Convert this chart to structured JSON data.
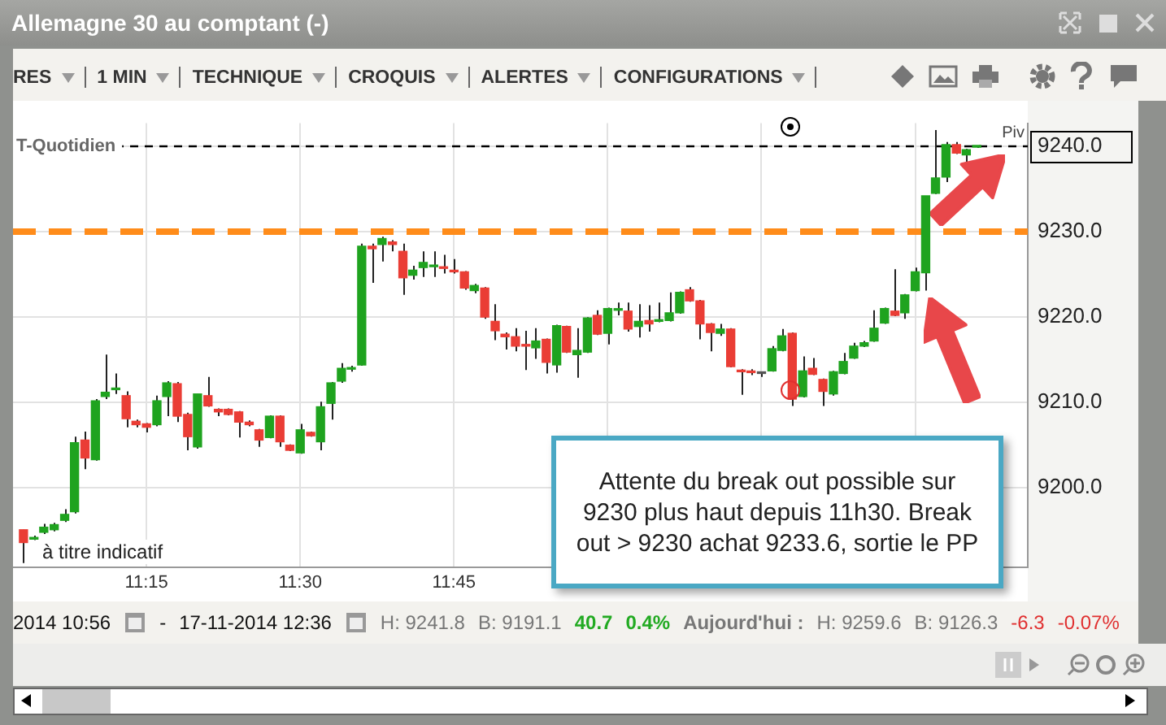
{
  "chart_data": {
    "type": "candlestick",
    "title": "Allemagne 30 au comptant (-)",
    "x": [
      11.05,
      11.067,
      11.083,
      11.1,
      11.117,
      11.133,
      11.15,
      11.167,
      11.183,
      11.2,
      11.217,
      11.233,
      11.25,
      11.267,
      11.283,
      11.3,
      11.317,
      11.333,
      11.35,
      11.367,
      11.383,
      11.4,
      11.417,
      11.433,
      11.45,
      11.467,
      11.483,
      11.5,
      11.517,
      11.533,
      11.55,
      11.567,
      11.583,
      11.6,
      11.617,
      11.633,
      11.65,
      11.667,
      11.683,
      11.7,
      11.717,
      11.733,
      11.75,
      11.767,
      11.783,
      11.8,
      11.817,
      11.833,
      11.85,
      11.867,
      11.883,
      11.9,
      11.917,
      11.933,
      11.95,
      11.967,
      11.983,
      12.0,
      12.017,
      12.033,
      12.05,
      12.067,
      12.083,
      12.1,
      12.117,
      12.133,
      12.15,
      12.167,
      12.183,
      12.2,
      12.217,
      12.233,
      12.25,
      12.267,
      12.283,
      12.3,
      12.317,
      12.333,
      12.35,
      12.367,
      12.383,
      12.4,
      12.417,
      12.433,
      12.45,
      12.467,
      12.483,
      12.5,
      12.517,
      12.533,
      12.55,
      12.567,
      12.583,
      12.6
    ],
    "ohlc": [
      [
        9195.1,
        9195.1,
        9191.2,
        9193.6
      ],
      [
        9194.0,
        9194.4,
        9193.9,
        9194.2
      ],
      [
        9194.8,
        9195.8,
        9194.6,
        9195.4
      ],
      [
        9195.1,
        9195.9,
        9194.9,
        9195.7
      ],
      [
        9196.2,
        9197.5,
        9196.0,
        9196.9
      ],
      [
        9197.2,
        9206.0,
        9197.0,
        9205.3
      ],
      [
        9205.6,
        9206.6,
        9202.2,
        9203.5
      ],
      [
        9203.3,
        9210.4,
        9203.2,
        9210.2
      ],
      [
        9210.7,
        9215.6,
        9210.4,
        9211.2
      ],
      [
        9211.5,
        9213.4,
        9211.0,
        9211.6
      ],
      [
        9210.8,
        9211.3,
        9207.1,
        9208.1
      ],
      [
        9207.8,
        9208.0,
        9207.1,
        9207.4
      ],
      [
        9207.5,
        9207.6,
        9206.5,
        9207.1
      ],
      [
        9207.4,
        9210.8,
        9207.2,
        9210.2
      ],
      [
        9210.7,
        9212.5,
        9208.4,
        9212.3
      ],
      [
        9212.2,
        9212.4,
        9207.7,
        9208.4
      ],
      [
        9208.6,
        9208.8,
        9204.4,
        9206.0
      ],
      [
        9204.8,
        9211.0,
        9204.6,
        9211.0
      ],
      [
        9210.8,
        9213.0,
        9209.5,
        9209.6
      ],
      [
        9209.2,
        9209.3,
        9208.4,
        9208.9
      ],
      [
        9209.2,
        9209.3,
        9208.5,
        9208.6
      ],
      [
        9208.9,
        9209.0,
        9205.9,
        9207.7
      ],
      [
        9207.7,
        9207.9,
        9207.2,
        9207.4
      ],
      [
        9206.8,
        9206.9,
        9204.8,
        9205.6
      ],
      [
        9205.9,
        9208.5,
        9205.8,
        9208.4
      ],
      [
        9208.4,
        9208.5,
        9204.8,
        9205.4
      ],
      [
        9205.0,
        9205.1,
        9204.3,
        9204.4
      ],
      [
        9204.1,
        9207.5,
        9204.0,
        9206.8
      ],
      [
        9206.5,
        9206.6,
        9206.0,
        9206.1
      ],
      [
        9205.4,
        9210.1,
        9204.4,
        9209.5
      ],
      [
        9209.9,
        9212.4,
        9208.0,
        9212.3
      ],
      [
        9212.5,
        9214.6,
        9212.3,
        9214.0
      ],
      [
        9213.9,
        9214.3,
        9213.6,
        9214.0
      ],
      [
        9214.4,
        9228.6,
        9214.3,
        9228.3
      ],
      [
        9228.3,
        9228.6,
        9224.0,
        9228.0
      ],
      [
        9228.5,
        9229.4,
        9226.5,
        9229.2
      ],
      [
        9228.8,
        9229.0,
        9227.7,
        9228.5
      ],
      [
        9227.7,
        9228.6,
        9222.6,
        9224.6
      ],
      [
        9224.9,
        9226.0,
        9224.4,
        9225.5
      ],
      [
        9225.8,
        9227.7,
        9224.7,
        9226.4
      ],
      [
        9225.9,
        9227.7,
        9224.7,
        9226.0
      ],
      [
        9225.8,
        9227.3,
        9225.1,
        9225.7
      ],
      [
        9225.4,
        9226.8,
        9225.1,
        9225.3
      ],
      [
        9225.3,
        9225.4,
        9223.2,
        9223.4
      ],
      [
        9223.1,
        9223.9,
        9222.8,
        9223.7
      ],
      [
        9223.4,
        9223.5,
        9219.8,
        9220.0
      ],
      [
        9219.5,
        9221.5,
        9217.3,
        9218.4
      ],
      [
        9218.0,
        9218.2,
        9216.2,
        9217.7
      ],
      [
        9217.7,
        9218.7,
        9216.0,
        9216.6
      ],
      [
        9216.8,
        9218.4,
        9213.8,
        9216.6
      ],
      [
        9216.4,
        9218.7,
        9215.1,
        9217.2
      ],
      [
        9217.4,
        9217.5,
        9213.4,
        9214.7
      ],
      [
        9214.4,
        9219.1,
        9213.5,
        9219.0
      ],
      [
        9218.9,
        9219.0,
        9215.8,
        9215.9
      ],
      [
        9215.6,
        9218.7,
        9212.9,
        9216.1
      ],
      [
        9215.9,
        9220.0,
        9215.8,
        9219.9
      ],
      [
        9220.2,
        9220.8,
        9217.9,
        9218.0
      ],
      [
        9218.1,
        9221.1,
        9216.8,
        9221.0
      ],
      [
        9220.8,
        9221.7,
        9220.2,
        9220.9
      ],
      [
        9220.7,
        9221.7,
        9218.3,
        9218.6
      ],
      [
        9218.9,
        9221.5,
        9217.6,
        9219.5
      ],
      [
        9219.6,
        9221.4,
        9218.3,
        9219.2
      ],
      [
        9219.5,
        9221.7,
        9219.4,
        9219.7
      ],
      [
        9219.6,
        9222.9,
        9219.5,
        9220.5
      ],
      [
        9220.5,
        9223.0,
        9220.4,
        9222.9
      ],
      [
        9223.2,
        9223.5,
        9221.8,
        9221.9
      ],
      [
        9221.9,
        9222.0,
        9217.4,
        9219.2
      ],
      [
        9219.2,
        9219.3,
        9216.0,
        9218.2
      ],
      [
        9218.1,
        9219.2,
        9217.8,
        9218.6
      ],
      [
        9218.6,
        9218.7,
        9214.1,
        9214.2
      ],
      [
        9213.7,
        9213.9,
        9210.9,
        9213.6
      ],
      [
        9213.6,
        9213.9,
        9213.2,
        9213.5
      ],
      [
        9213.4,
        9213.6,
        9213.0,
        9213.4
      ],
      [
        9213.7,
        9216.6,
        9213.6,
        9216.3
      ],
      [
        9216.1,
        9218.6,
        9216.0,
        9217.8
      ],
      [
        9218.1,
        9218.2,
        9209.6,
        9210.4
      ],
      [
        9210.7,
        9215.4,
        9210.6,
        9213.7
      ],
      [
        9214.0,
        9215.2,
        9213.2,
        9213.3
      ],
      [
        9212.7,
        9212.8,
        9209.6,
        9211.3
      ],
      [
        9211.0,
        9213.7,
        9210.8,
        9213.6
      ],
      [
        9213.4,
        9215.8,
        9213.3,
        9214.8
      ],
      [
        9215.2,
        9217.0,
        9215.1,
        9216.6
      ],
      [
        9216.6,
        9217.2,
        9216.5,
        9217.0
      ],
      [
        9217.2,
        9220.8,
        9217.1,
        9218.7
      ],
      [
        9219.3,
        9221.1,
        9219.2,
        9221.0
      ],
      [
        9220.7,
        9225.6,
        9220.1,
        9220.2
      ],
      [
        9220.5,
        9222.7,
        9219.8,
        9222.6
      ],
      [
        9223.1,
        9225.8,
        9223.0,
        9225.3
      ],
      [
        9225.2,
        9234.2,
        9223.1,
        9234.2
      ],
      [
        9234.5,
        9241.9,
        9234.4,
        9236.3
      ],
      [
        9236.4,
        9240.5,
        9235.8,
        9240.2
      ],
      [
        9240.2,
        9240.5,
        9239.1,
        9239.2
      ],
      [
        9239.0,
        9239.7,
        9238.1,
        9239.6
      ],
      [
        9239.9,
        9240.1,
        9239.8,
        9240.0
      ]
    ],
    "xlim": [
      11.033,
      12.683
    ],
    "xticks": [
      {
        "value": 11.25,
        "label": "11:15"
      },
      {
        "value": 11.5,
        "label": "11:30"
      },
      {
        "value": 11.75,
        "label": "11:45"
      },
      {
        "value": 12,
        "label": null
      },
      {
        "value": 12.25,
        "label": null
      },
      {
        "value": 12.5,
        "label": null
      }
    ],
    "ylim": [
      9190.7,
      9242.7
    ],
    "yticks": [
      {
        "value": 9200,
        "label": "9200.0"
      },
      {
        "value": 9210,
        "label": "9210.0"
      },
      {
        "value": 9220,
        "label": "9220.0"
      },
      {
        "value": 9230,
        "label": "9230.0"
      },
      {
        "value": 9240,
        "label": "9240.0"
      }
    ],
    "grid": true,
    "ref_lines": [
      {
        "axis": "y",
        "value": 9240,
        "label": "Piv",
        "color": "#000000",
        "line_style": "dashed"
      },
      {
        "axis": "y",
        "value": 9230,
        "color": "#ff8c1a",
        "line_style": "dashed"
      }
    ],
    "annotations": [
      {
        "text": "T-Quotidien",
        "x": 11.033,
        "y": 9240
      },
      "à titre indicatif",
      "Attente du break out possible sur 9230 plus haut depuis 11h30. Break out > 9230 achat 9233.6, sortie le PP",
      "RES",
      "1 MIN",
      "TECHNIQUE",
      "CROQUIS",
      "ALERTES",
      "CONFIGURATIONS",
      "2014 10:56",
      "-",
      "17-11-2014 12:36",
      "H: 9241.8",
      "B: 9191.1",
      "40.7",
      "0.4%",
      "Aujourd'hui :",
      "H: 9259.6",
      "B: 9126.3",
      "-6.3",
      "-0.07%"
    ]
  }
}
